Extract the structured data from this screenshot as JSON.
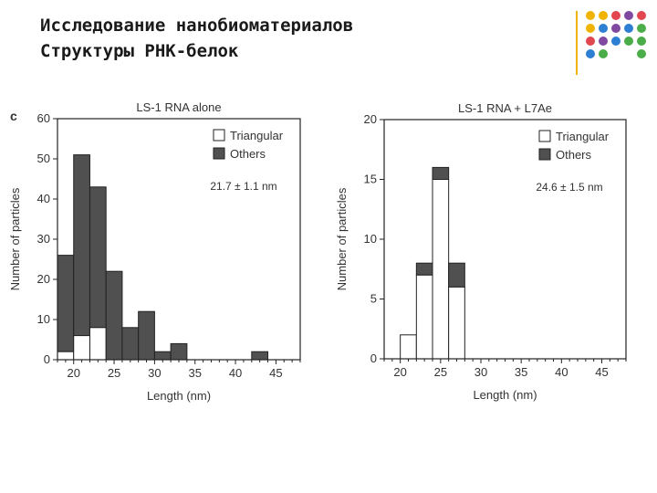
{
  "slide": {
    "title_line1": "Исследование нанобиоматериалов",
    "title_line2": "Структуры РНК-белок"
  },
  "decor_dots": [
    [
      "#f0b400",
      "#f0b400",
      "#e2474f",
      "#7f4aa0",
      "#e2474f"
    ],
    [
      "#f0b400",
      "#2d7fd3",
      "#7f4aa0",
      "#2d7fd3",
      "#4aad4a"
    ],
    [
      "#e2474f",
      "#7f4aa0",
      "#2d7fd3",
      "#4aad4a",
      "#4aad4a"
    ],
    [
      "#2d7fd3",
      "#4aad4a",
      "",
      "",
      "#4aad4a"
    ]
  ],
  "colors": {
    "others": "#505050",
    "triangular": "#ffffff",
    "accent_line": "#f0b400"
  },
  "chart_data": [
    {
      "type": "bar",
      "panel_label": "c",
      "title": "LS-1 RNA alone",
      "xlabel": "Length (nm)",
      "ylabel": "Number of particles",
      "xlim": [
        18,
        48
      ],
      "ylim": [
        0,
        60
      ],
      "xticks": [
        20,
        25,
        30,
        35,
        40,
        45
      ],
      "yticks": [
        0,
        10,
        20,
        30,
        40,
        50,
        60
      ],
      "bin_width": 2,
      "bins": [
        {
          "start": 18,
          "total": 26,
          "triangular": 2
        },
        {
          "start": 20,
          "total": 51,
          "triangular": 6
        },
        {
          "start": 22,
          "total": 43,
          "triangular": 8
        },
        {
          "start": 24,
          "total": 22,
          "triangular": 0
        },
        {
          "start": 26,
          "total": 8,
          "triangular": 0
        },
        {
          "start": 28,
          "total": 12,
          "triangular": 0
        },
        {
          "start": 30,
          "total": 2,
          "triangular": 0
        },
        {
          "start": 32,
          "total": 4,
          "triangular": 0
        },
        {
          "start": 42,
          "total": 2,
          "triangular": 0
        }
      ],
      "legend": [
        {
          "name": "Triangular"
        },
        {
          "name": "Others"
        }
      ],
      "legend_position": "top-right",
      "annotation": "21.7 ± 1.1 nm"
    },
    {
      "type": "bar",
      "panel_label": "",
      "title": "LS-1 RNA + L7Ae",
      "xlabel": "Length (nm)",
      "ylabel": "Number of particles",
      "xlim": [
        18,
        48
      ],
      "ylim": [
        0,
        20
      ],
      "xticks": [
        20,
        25,
        30,
        35,
        40,
        45
      ],
      "yticks": [
        0,
        5,
        10,
        15,
        20
      ],
      "bin_width": 2,
      "bins": [
        {
          "start": 20,
          "total": 2,
          "triangular": 2
        },
        {
          "start": 22,
          "total": 8,
          "triangular": 7
        },
        {
          "start": 24,
          "total": 16,
          "triangular": 15
        },
        {
          "start": 26,
          "total": 8,
          "triangular": 6
        }
      ],
      "legend": [
        {
          "name": "Triangular"
        },
        {
          "name": "Others"
        }
      ],
      "legend_position": "top-right",
      "annotation": "24.6 ± 1.5 nm"
    }
  ]
}
